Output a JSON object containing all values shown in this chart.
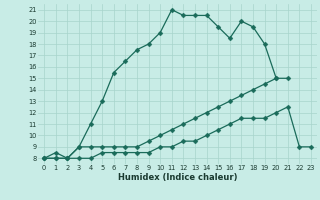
{
  "xlabel": "Humidex (Indice chaleur)",
  "bg_color": "#c8ece6",
  "line_color": "#1a6b5a",
  "grid_color": "#a8d4cc",
  "xlim": [
    -0.5,
    23.5
  ],
  "ylim": [
    7.5,
    21.5
  ],
  "xticks": [
    0,
    1,
    2,
    3,
    4,
    5,
    6,
    7,
    8,
    9,
    10,
    11,
    12,
    13,
    14,
    15,
    16,
    17,
    18,
    19,
    20,
    21,
    22,
    23
  ],
  "yticks": [
    8,
    9,
    10,
    11,
    12,
    13,
    14,
    15,
    16,
    17,
    18,
    19,
    20,
    21
  ],
  "line1_x": [
    0,
    1,
    2,
    3,
    4,
    5,
    6,
    7,
    8,
    9,
    10,
    11,
    12,
    13,
    14,
    15,
    16,
    17,
    18,
    19,
    20
  ],
  "line1_y": [
    8,
    8,
    8,
    9,
    11,
    13,
    15.5,
    16.5,
    17.5,
    18.0,
    19.0,
    21.0,
    20.5,
    20.5,
    20.5,
    19.5,
    18.5,
    20.0,
    19.5,
    18.0,
    15.0
  ],
  "line2_x": [
    0,
    1,
    2,
    3,
    4,
    5,
    6,
    7,
    8,
    9,
    10,
    11,
    12,
    13,
    14,
    15,
    16,
    17,
    18,
    19,
    20,
    21
  ],
  "line2_y": [
    8,
    8.5,
    8,
    9,
    9,
    9,
    9,
    9,
    9,
    9.5,
    10,
    10.5,
    11,
    11.5,
    12,
    12.5,
    13,
    13.5,
    14,
    14.5,
    15,
    15
  ],
  "line3_x": [
    0,
    1,
    2,
    3,
    4,
    5,
    6,
    7,
    8,
    9,
    10,
    11,
    12,
    13,
    14,
    15,
    16,
    17,
    18,
    19,
    20,
    21,
    22,
    23
  ],
  "line3_y": [
    8,
    8,
    8,
    8,
    8.0,
    8.5,
    8.5,
    8.5,
    8.5,
    8.5,
    9.0,
    9.0,
    9.5,
    9.5,
    10,
    10.5,
    11,
    11.5,
    11.5,
    11.5,
    12,
    12.5,
    9,
    9
  ]
}
